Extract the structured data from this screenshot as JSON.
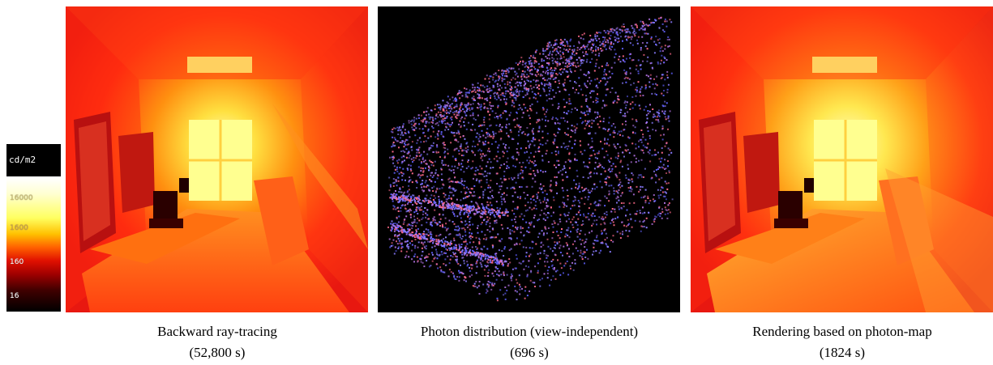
{
  "legend": {
    "unit": "cd/m2",
    "ticks": [
      "16000",
      "1600",
      "160",
      "16"
    ],
    "colors": [
      "#ffffff",
      "#ffff60",
      "#ff6000",
      "#a00000",
      "#000000"
    ]
  },
  "panels": [
    {
      "title": "Backward ray-tracing",
      "time": "(52,800 s)"
    },
    {
      "title": "Photon distribution (view-independent)",
      "time": "(696 s)"
    },
    {
      "title": "Rendering based on photon-map",
      "time": "(1824 s)"
    }
  ],
  "photon_colors": [
    "#8a7cff",
    "#ff6a8a",
    "#b070e0",
    "#6060ff"
  ]
}
